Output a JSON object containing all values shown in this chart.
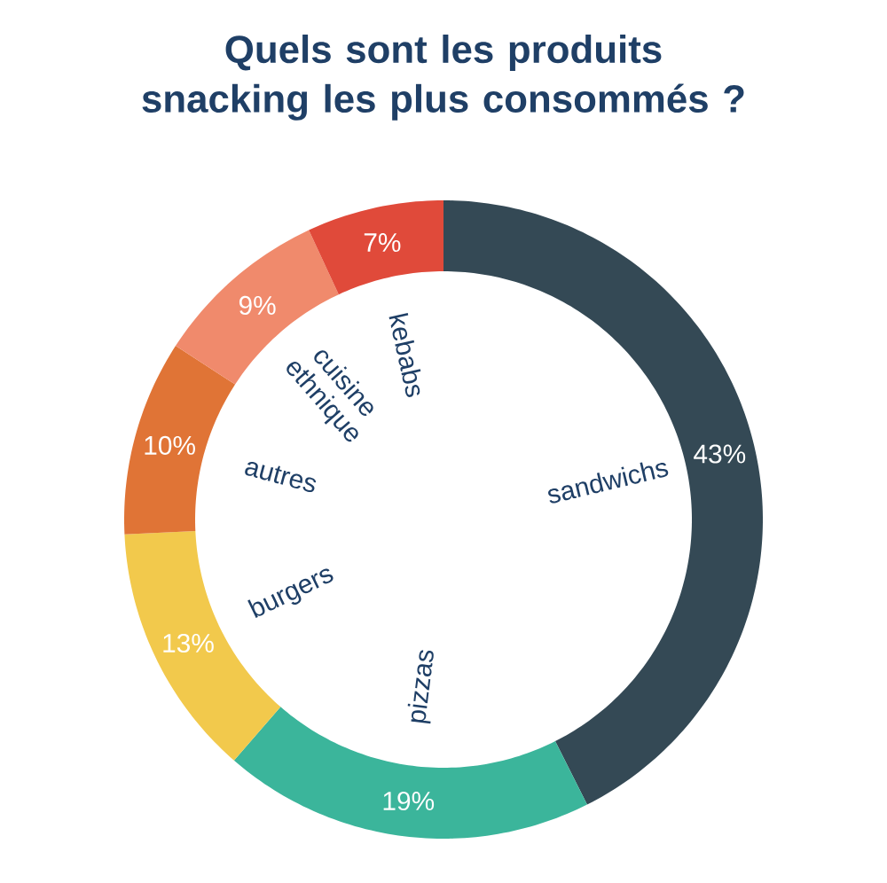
{
  "chart_data": {
    "type": "donut",
    "title": "Quels sont les produits snacking les plus consommés ?",
    "categories": [
      "sandwichs",
      "pizzas",
      "burgers",
      "autres",
      "cuisine ethnique",
      "kebabs"
    ],
    "values": [
      43,
      19,
      13,
      10,
      9,
      7
    ],
    "value_labels": [
      "43%",
      "19%",
      "13%",
      "10%",
      "9%",
      "7%"
    ],
    "colors": [
      "#344955",
      "#3bb59b",
      "#f2c94c",
      "#e07436",
      "#f08a6c",
      "#e04a3a"
    ]
  }
}
